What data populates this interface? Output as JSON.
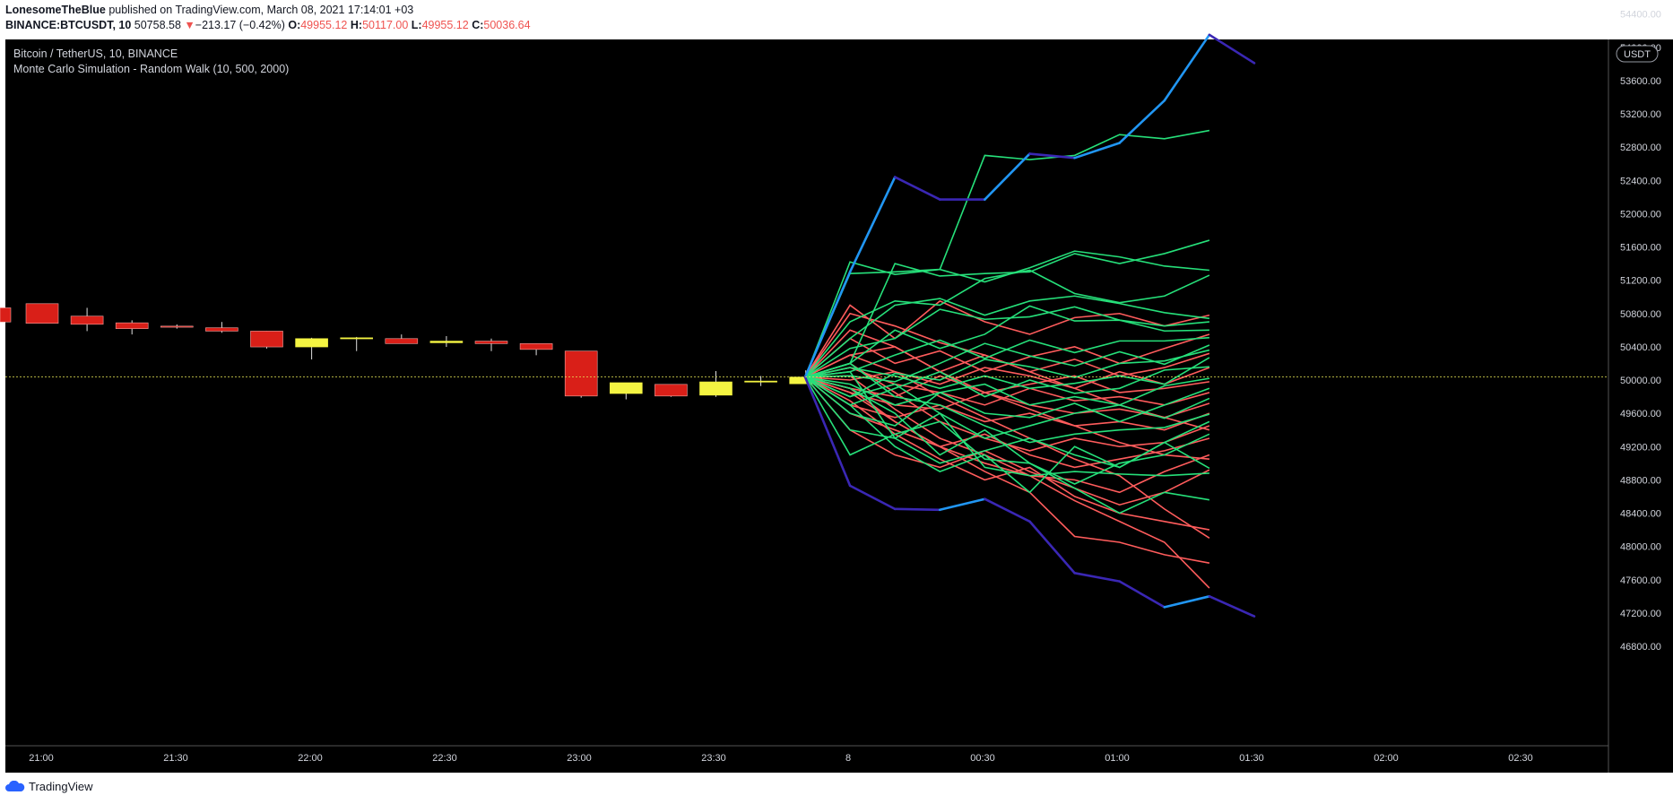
{
  "header": {
    "author": "LonesomeTheBlue",
    "published_text": "published on TradingView.com, March 08, 2021 17:14:01 +03",
    "symbol": "BINANCE:BTCUSDT, 10",
    "last_price": "50758.58",
    "change_arrow": "▼",
    "change": "−213.17 (−0.42%)",
    "o_label": "O:",
    "o_value": "49955.12",
    "h_label": "H:",
    "h_value": "50117.00",
    "l_label": "L:",
    "l_value": "49955.12",
    "c_label": "C:",
    "c_value": "50036.64"
  },
  "chart_data": {
    "type": "candlestick",
    "title": "Bitcoin / TetherUS, 10, BINANCE",
    "indicator": "Monte Carlo Simulation - Random Walk (10, 500, 2000)",
    "currency": "USDT",
    "current_price_label": "50036.64",
    "current_price": 50036.64,
    "ylim": [
      46500,
      54800
    ],
    "y_ticks": [
      46800,
      47200,
      47600,
      48000,
      48400,
      48800,
      49200,
      49600,
      50000,
      50400,
      50800,
      51200,
      51600,
      52000,
      52400,
      52800,
      53200,
      53600,
      54000,
      54400
    ],
    "x_tick_labels": [
      "21:00",
      "21:30",
      "22:00",
      "22:30",
      "23:00",
      "23:30",
      "8",
      "00:30",
      "01:00",
      "01:30",
      "02:00",
      "02:30"
    ],
    "colors": {
      "up": "#f4f442",
      "down": "#d91f18",
      "wick": "#e0e0e0",
      "sim_up": "#26e07a",
      "sim_down": "#ff5c5c",
      "band_high": "#2196f3",
      "band_low": "#3a27b4",
      "price_line": "#e8e857",
      "price_label_bg": "#ffeb3b",
      "background": "#000000"
    },
    "candles": [
      {
        "o": 50868,
        "h": 50868,
        "l": 50698,
        "c": 50698
      },
      {
        "o": 50918,
        "h": 50918,
        "l": 50682,
        "c": 50682
      },
      {
        "o": 50768,
        "h": 50868,
        "l": 50588,
        "c": 50670
      },
      {
        "o": 50688,
        "h": 50718,
        "l": 50548,
        "c": 50618
      },
      {
        "o": 50648,
        "h": 50668,
        "l": 50618,
        "c": 50638
      },
      {
        "o": 50628,
        "h": 50698,
        "l": 50568,
        "c": 50588
      },
      {
        "o": 50588,
        "h": 50588,
        "l": 50378,
        "c": 50398
      },
      {
        "o": 50398,
        "h": 50508,
        "l": 50248,
        "c": 50498
      },
      {
        "o": 50498,
        "h": 50518,
        "l": 50348,
        "c": 50508
      },
      {
        "o": 50498,
        "h": 50548,
        "l": 50448,
        "c": 50438
      },
      {
        "o": 50448,
        "h": 50528,
        "l": 50398,
        "c": 50468
      },
      {
        "o": 50468,
        "h": 50498,
        "l": 50348,
        "c": 50438
      },
      {
        "o": 50438,
        "h": 50438,
        "l": 50298,
        "c": 50368
      },
      {
        "o": 50348,
        "h": 50348,
        "l": 49788,
        "c": 49808
      },
      {
        "o": 49838,
        "h": 49968,
        "l": 49768,
        "c": 49968
      },
      {
        "o": 49948,
        "h": 49948,
        "l": 49798,
        "c": 49808
      },
      {
        "o": 49818,
        "h": 50108,
        "l": 49798,
        "c": 49978
      },
      {
        "o": 49988,
        "h": 50048,
        "l": 49928,
        "c": 49988
      },
      {
        "o": 49955,
        "h": 50117,
        "l": 49955,
        "c": 50036
      }
    ],
    "band_high": [
      50036,
      51300,
      52440,
      52170,
      52170,
      52720,
      52670,
      52850,
      53360,
      54150,
      53810
    ],
    "band_low": [
      50036,
      48730,
      48450,
      48440,
      48570,
      48300,
      47680,
      47580,
      47270,
      47400,
      47160
    ],
    "sim_paths": [
      [
        50036,
        51280,
        51300,
        51330,
        52700,
        52650,
        52700,
        52950,
        52900,
        53000
      ],
      [
        50036,
        50200,
        51400,
        51250,
        51280,
        51300,
        51520,
        51400,
        51520,
        51680
      ],
      [
        50036,
        51420,
        51270,
        51330,
        51180,
        51350,
        51550,
        51480,
        51370,
        51320
      ],
      [
        50036,
        50700,
        50950,
        50900,
        51220,
        51320,
        51040,
        50930,
        51010,
        51260
      ],
      [
        50036,
        50500,
        50900,
        50980,
        50780,
        50950,
        51010,
        50920,
        50810,
        50740
      ],
      [
        50036,
        50380,
        50500,
        50850,
        50730,
        50760,
        50880,
        50720,
        50650,
        50700
      ],
      [
        50036,
        50200,
        50600,
        50380,
        50550,
        50890,
        50710,
        50720,
        50590,
        50600
      ],
      [
        50036,
        50100,
        50300,
        50480,
        50260,
        50480,
        50330,
        50470,
        50470,
        50510
      ],
      [
        50036,
        50050,
        49980,
        50200,
        50440,
        50290,
        50170,
        50340,
        50190,
        50420
      ],
      [
        50036,
        49800,
        50080,
        50000,
        50250,
        50160,
        50030,
        50200,
        50230,
        50360
      ],
      [
        50036,
        50150,
        50050,
        49900,
        50050,
        49900,
        49960,
        50050,
        49950,
        50270
      ],
      [
        50036,
        49700,
        49900,
        50100,
        49800,
        50000,
        49840,
        49900,
        50120,
        50160
      ],
      [
        50036,
        49950,
        49700,
        49850,
        49950,
        49700,
        49800,
        49700,
        49930,
        50020
      ],
      [
        50036,
        49600,
        49450,
        49850,
        49600,
        49550,
        49720,
        49500,
        49700,
        49900
      ],
      [
        50036,
        49800,
        49950,
        49600,
        49300,
        49450,
        49600,
        49700,
        49540,
        49780
      ],
      [
        50036,
        50200,
        49800,
        49700,
        49450,
        49250,
        49350,
        49400,
        49430,
        49590
      ],
      [
        50036,
        49400,
        49300,
        49000,
        49150,
        49300,
        49100,
        48950,
        49250,
        49500
      ],
      [
        50036,
        49100,
        49350,
        49500,
        49050,
        49000,
        48750,
        49000,
        49100,
        49350
      ],
      [
        50036,
        50100,
        49300,
        49600,
        48950,
        48850,
        48900,
        48870,
        48850,
        48880
      ],
      [
        50036,
        49700,
        49200,
        48900,
        49100,
        48650,
        49200,
        48950,
        49250,
        48940
      ],
      [
        50036,
        49900,
        49600,
        49100,
        49400,
        49000,
        48700,
        48400,
        48650,
        48560
      ]
    ],
    "sim_down_paths": [
      [
        50036,
        50900,
        50500,
        50950,
        50700,
        50550,
        50750,
        50800,
        50650,
        50780
      ],
      [
        50036,
        50500,
        50200,
        50350,
        50100,
        50280,
        50400,
        50200,
        50380,
        50550
      ],
      [
        50036,
        50300,
        50400,
        50100,
        50300,
        50100,
        50250,
        50050,
        50150,
        50320
      ],
      [
        50036,
        50000,
        50100,
        49950,
        50150,
        50050,
        49900,
        50100,
        49950,
        50150
      ],
      [
        50036,
        49900,
        49800,
        50050,
        49850,
        49950,
        50050,
        49850,
        49900,
        49980
      ],
      [
        50036,
        50150,
        49950,
        49850,
        49700,
        49900,
        49750,
        49800,
        49700,
        49850
      ],
      [
        50036,
        49850,
        49700,
        49650,
        49850,
        49700,
        49600,
        49650,
        49550,
        49720
      ],
      [
        50036,
        49700,
        49550,
        49700,
        49500,
        49600,
        49450,
        49500,
        49400,
        49600
      ],
      [
        50036,
        50200,
        49850,
        49500,
        49300,
        49150,
        49300,
        49200,
        49250,
        49450
      ],
      [
        50036,
        49600,
        49400,
        49200,
        49350,
        49100,
        48950,
        49050,
        49150,
        49300
      ],
      [
        50036,
        49900,
        49500,
        49200,
        49000,
        48850,
        48800,
        48650,
        48900,
        49100
      ],
      [
        50036,
        49400,
        49100,
        48950,
        49150,
        48900,
        48700,
        48500,
        48650,
        48920
      ],
      [
        50036,
        49750,
        49350,
        49050,
        48800,
        48950,
        48600,
        48400,
        48300,
        48200
      ],
      [
        50036,
        49850,
        49500,
        49200,
        48900,
        48650,
        48120,
        48050,
        47900,
        47800
      ],
      [
        50036,
        50050,
        49650,
        49300,
        49100,
        48850,
        48550,
        48300,
        48050,
        47500
      ],
      [
        50036,
        50300,
        50100,
        49800,
        49550,
        49300,
        49050,
        48850,
        48450,
        48100
      ],
      [
        50036,
        50600,
        50400,
        50100,
        49850,
        49650,
        49450,
        49250,
        49100,
        49050
      ],
      [
        50036,
        50800,
        50650,
        50450,
        50300,
        50100,
        49900,
        49700,
        49550,
        49400
      ]
    ]
  },
  "axis_badge": "USDT",
  "footer": {
    "brand": "TradingView"
  }
}
